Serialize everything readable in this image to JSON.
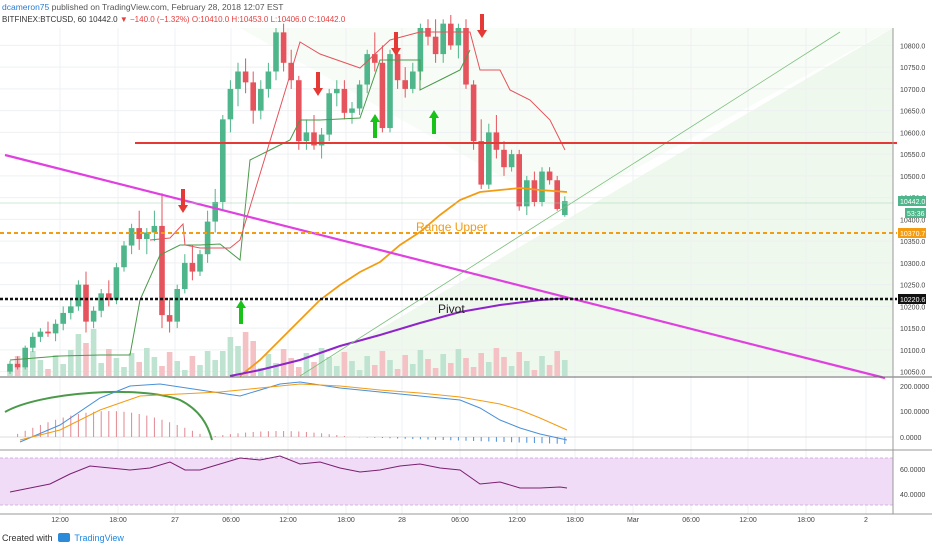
{
  "header": {
    "user": "dcameron75",
    "published": "published on TradingView.com, February 28, 2018 12:07 EST",
    "symbol": "BITFINEX:BTCUSD, 60",
    "last": "10442.0",
    "change": "▼ −140.0 (−1.32%)",
    "ohlc": "O:10410.0 H:10453.0 L:10406.0 C:10442.0"
  },
  "footer": {
    "created_with": "Created with",
    "brand": "TradingView"
  },
  "annotations": {
    "range_upper": "Range Upper",
    "pivot": "Pivot"
  },
  "price_labels": {
    "last": "10442.0",
    "countdown": "53:36",
    "range_upper": "10370.7",
    "pivot": "10220.6"
  },
  "colors": {
    "candle_up": "#4fb58a",
    "candle_down": "#e5535c",
    "ma": "#f39c12",
    "pivot_line": "#8e24c9",
    "trendline": "#e040e0",
    "resistance": "#e53935",
    "range_line": "#f39c12",
    "macd": "#4a90d9",
    "signal": "#f39c12",
    "rsi": "#7b1f6e",
    "rsi_band": "#f0dcf7"
  },
  "chart_data": {
    "type": "candlestick",
    "price_axis": {
      "ticks": [
        "10800.0",
        "10750.0",
        "10700.0",
        "10650.0",
        "10600.0",
        "10550.0",
        "10500.0",
        "10450.0",
        "10400.0",
        "10350.0",
        "10300.0",
        "10250.0",
        "10200.0",
        "10150.0",
        "10100.0",
        "10050.0"
      ],
      "range": [
        10040,
        10840
      ]
    },
    "time_axis": [
      "12:00",
      "18:00",
      "27",
      "06:00",
      "12:00",
      "18:00",
      "28",
      "06:00",
      "12:00",
      "18:00",
      "Mar",
      "06:00",
      "12:00",
      "18:00",
      "2"
    ],
    "levels": {
      "resistance": 10580,
      "range_upper": 10370.7,
      "pivot": 10220.6,
      "last": 10442.0
    },
    "ohlc": [
      [
        10050,
        10075,
        10045,
        10068
      ],
      [
        10068,
        10085,
        10055,
        10060
      ],
      [
        10060,
        10110,
        10055,
        10105
      ],
      [
        10105,
        10140,
        10095,
        10130
      ],
      [
        10130,
        10150,
        10118,
        10142
      ],
      [
        10142,
        10165,
        10130,
        10138
      ],
      [
        10138,
        10170,
        10120,
        10160
      ],
      [
        10160,
        10200,
        10145,
        10185
      ],
      [
        10185,
        10215,
        10170,
        10200
      ],
      [
        10200,
        10260,
        10190,
        10250
      ],
      [
        10250,
        10280,
        10140,
        10165
      ],
      [
        10165,
        10200,
        10150,
        10190
      ],
      [
        10190,
        10240,
        10175,
        10230
      ],
      [
        10230,
        10260,
        10200,
        10215
      ],
      [
        10215,
        10300,
        10205,
        10290
      ],
      [
        10290,
        10350,
        10280,
        10340
      ],
      [
        10340,
        10390,
        10320,
        10380
      ],
      [
        10380,
        10420,
        10330,
        10355
      ],
      [
        10355,
        10380,
        10320,
        10370
      ],
      [
        10370,
        10420,
        10350,
        10385
      ],
      [
        10385,
        10460,
        10150,
        10180
      ],
      [
        10180,
        10220,
        10140,
        10165
      ],
      [
        10165,
        10250,
        10150,
        10240
      ],
      [
        10240,
        10320,
        10230,
        10300
      ],
      [
        10300,
        10340,
        10260,
        10280
      ],
      [
        10280,
        10330,
        10270,
        10320
      ],
      [
        10320,
        10420,
        10300,
        10395
      ],
      [
        10395,
        10470,
        10370,
        10440
      ],
      [
        10440,
        10640,
        10420,
        10630
      ],
      [
        10630,
        10720,
        10600,
        10700
      ],
      [
        10700,
        10760,
        10660,
        10740
      ],
      [
        10740,
        10770,
        10690,
        10715
      ],
      [
        10715,
        10740,
        10620,
        10650
      ],
      [
        10650,
        10720,
        10630,
        10700
      ],
      [
        10700,
        10760,
        10680,
        10740
      ],
      [
        10740,
        10840,
        10720,
        10830
      ],
      [
        10830,
        10850,
        10740,
        10760
      ],
      [
        10760,
        10790,
        10700,
        10720
      ],
      [
        10720,
        10730,
        10560,
        10580
      ],
      [
        10580,
        10630,
        10560,
        10600
      ],
      [
        10600,
        10640,
        10560,
        10570
      ],
      [
        10570,
        10610,
        10540,
        10595
      ],
      [
        10595,
        10700,
        10580,
        10690
      ],
      [
        10690,
        10720,
        10660,
        10700
      ],
      [
        10700,
        10720,
        10630,
        10645
      ],
      [
        10645,
        10670,
        10620,
        10655
      ],
      [
        10655,
        10720,
        10640,
        10710
      ],
      [
        10710,
        10790,
        10690,
        10780
      ],
      [
        10780,
        10830,
        10740,
        10760
      ],
      [
        10760,
        10800,
        10600,
        10610
      ],
      [
        10610,
        10790,
        10600,
        10780
      ],
      [
        10780,
        10800,
        10700,
        10720
      ],
      [
        10720,
        10750,
        10680,
        10700
      ],
      [
        10700,
        10760,
        10690,
        10740
      ],
      [
        10740,
        10850,
        10720,
        10840
      ],
      [
        10840,
        10860,
        10800,
        10820
      ],
      [
        10820,
        10860,
        10760,
        10780
      ],
      [
        10780,
        10860,
        10760,
        10850
      ],
      [
        10850,
        10870,
        10790,
        10800
      ],
      [
        10800,
        10850,
        10770,
        10840
      ],
      [
        10840,
        10860,
        10700,
        10710
      ],
      [
        10710,
        10720,
        10560,
        10580
      ],
      [
        10580,
        10630,
        10470,
        10480
      ],
      [
        10480,
        10620,
        10470,
        10600
      ],
      [
        10600,
        10640,
        10540,
        10560
      ],
      [
        10560,
        10580,
        10500,
        10520
      ],
      [
        10520,
        10560,
        10510,
        10550
      ],
      [
        10550,
        10560,
        10420,
        10430
      ],
      [
        10430,
        10500,
        10410,
        10490
      ],
      [
        10490,
        10510,
        10430,
        10440
      ],
      [
        10440,
        10520,
        10430,
        10510
      ],
      [
        10510,
        10520,
        10480,
        10490
      ],
      [
        10490,
        10500,
        10420,
        10424
      ],
      [
        10410,
        10453,
        10406,
        10442
      ]
    ],
    "volume_note": "volume histogram overlay at bottom of price pane",
    "macd": {
      "ticks": [
        "200.0000",
        "100.0000",
        "0.0000"
      ]
    },
    "rsi": {
      "ticks": [
        "60.0000",
        "40.0000"
      ],
      "band": [
        30,
        70
      ]
    }
  }
}
